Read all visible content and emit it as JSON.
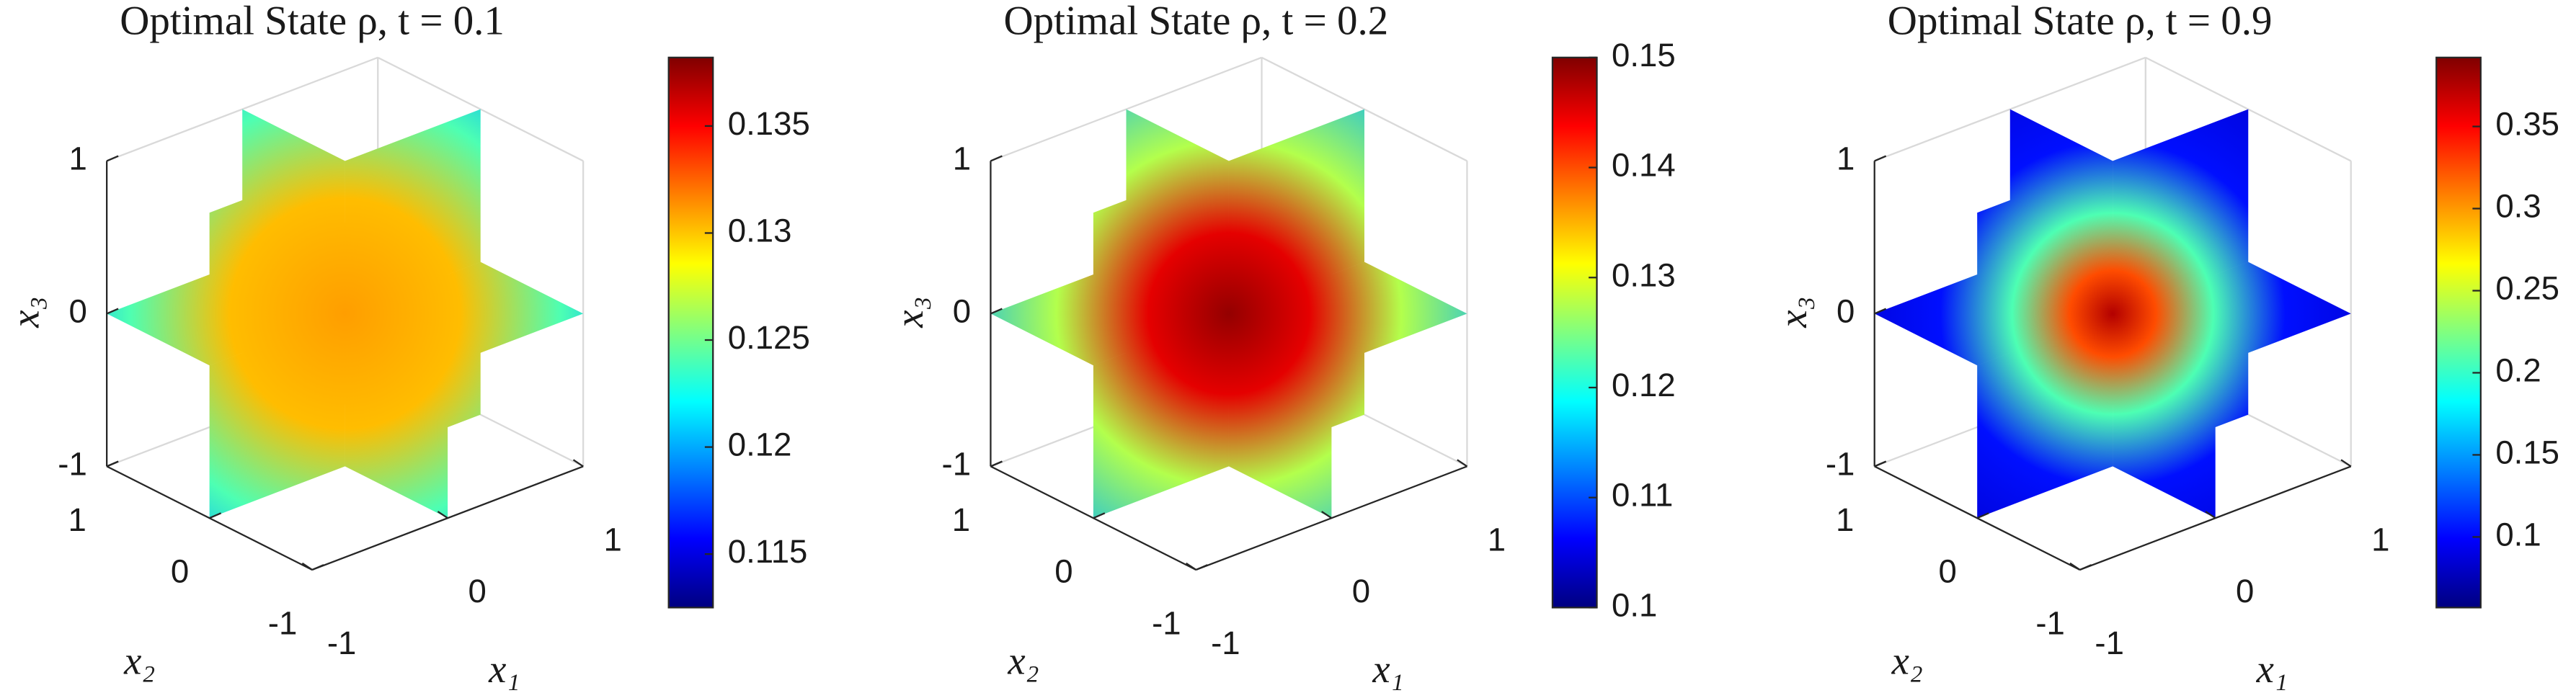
{
  "chart_data": [
    {
      "type": "slice",
      "title": "Optimal State ρ, t = 0.1",
      "xlabel": "x₁",
      "ylabel": "x₂",
      "zlabel": "x₃",
      "xlim": [
        -1,
        1
      ],
      "ylim": [
        -1,
        1
      ],
      "zlim": [
        -1,
        1
      ],
      "xticks": [
        -1,
        0,
        1
      ],
      "yticks": [
        -1,
        0,
        1
      ],
      "zticks": [
        -1,
        0,
        1
      ],
      "colormap": "jet",
      "clim": [
        0.1125,
        0.1382
      ],
      "cticks": [
        0.115,
        0.12,
        0.125,
        0.13,
        0.135
      ]
    },
    {
      "type": "slice",
      "title": "Optimal State ρ, t = 0.2",
      "xlabel": "x₁",
      "ylabel": "x₂",
      "zlabel": "x₃",
      "xlim": [
        -1,
        1
      ],
      "ylim": [
        -1,
        1
      ],
      "zlim": [
        -1,
        1
      ],
      "xticks": [
        -1,
        0,
        1
      ],
      "yticks": [
        -1,
        0,
        1
      ],
      "zticks": [
        -1,
        0,
        1
      ],
      "colormap": "jet",
      "clim": [
        0.1,
        0.15
      ],
      "cticks": [
        0.1,
        0.11,
        0.12,
        0.13,
        0.14,
        0.15
      ]
    },
    {
      "type": "slice",
      "title": "Optimal State ρ, t = 0.9",
      "xlabel": "x₁",
      "ylabel": "x₂",
      "zlabel": "x₃",
      "xlim": [
        -1,
        1
      ],
      "ylim": [
        -1,
        1
      ],
      "zlim": [
        -1,
        1
      ],
      "xticks": [
        -1,
        0,
        1
      ],
      "yticks": [
        -1,
        0,
        1
      ],
      "zticks": [
        -1,
        0,
        1
      ],
      "colormap": "jet",
      "clim": [
        0.057,
        0.392
      ],
      "cticks": [
        0.1,
        0.15,
        0.2,
        0.25,
        0.3,
        0.35
      ]
    }
  ]
}
